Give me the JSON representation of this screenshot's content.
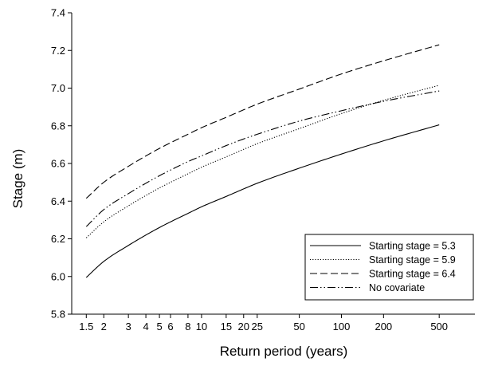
{
  "chart_data": {
    "type": "line",
    "title": "",
    "xlabel": "Return period (years)",
    "ylabel": "Stage (m)",
    "x_scale": "log",
    "xlim": [
      1.18,
      900
    ],
    "ylim": [
      5.8,
      7.4
    ],
    "x_ticks": [
      {
        "value": 1.5,
        "label": "1.5"
      },
      {
        "value": 2,
        "label": "2"
      },
      {
        "value": 3,
        "label": "3"
      },
      {
        "value": 4,
        "label": "4"
      },
      {
        "value": 5,
        "label": "5"
      },
      {
        "value": 6,
        "label": "6"
      },
      {
        "value": 8,
        "label": "8"
      },
      {
        "value": 10,
        "label": "10"
      },
      {
        "value": 15,
        "label": "15"
      },
      {
        "value": 20,
        "label": "20"
      },
      {
        "value": 25,
        "label": "25"
      },
      {
        "value": 50,
        "label": "50"
      },
      {
        "value": 100,
        "label": "100"
      },
      {
        "value": 200,
        "label": "200"
      },
      {
        "value": 500,
        "label": "500"
      }
    ],
    "y_ticks": [
      {
        "value": 5.8,
        "label": "5.8"
      },
      {
        "value": 6.0,
        "label": "6.0"
      },
      {
        "value": 6.2,
        "label": "6.2"
      },
      {
        "value": 6.4,
        "label": "6.4"
      },
      {
        "value": 6.6,
        "label": "6.6"
      },
      {
        "value": 6.8,
        "label": "6.8"
      },
      {
        "value": 7.0,
        "label": "7.0"
      },
      {
        "value": 7.2,
        "label": "7.2"
      },
      {
        "value": 7.4,
        "label": "7.4"
      }
    ],
    "grid": false,
    "legend_position": "bottom-right",
    "x": [
      1.5,
      2,
      3,
      4,
      5,
      6,
      8,
      10,
      15,
      20,
      25,
      50,
      100,
      200,
      500
    ],
    "series": [
      {
        "name": "Starting stage = 5.3",
        "dash": "solid",
        "color": "#000000",
        "values": [
          5.995,
          6.08,
          6.165,
          6.22,
          6.26,
          6.29,
          6.335,
          6.37,
          6.425,
          6.465,
          6.495,
          6.575,
          6.65,
          6.72,
          6.805
        ]
      },
      {
        "name": "Starting stage = 5.9",
        "dash": "dotted",
        "color": "#000000",
        "values": [
          6.205,
          6.29,
          6.375,
          6.43,
          6.47,
          6.5,
          6.545,
          6.58,
          6.635,
          6.675,
          6.705,
          6.785,
          6.865,
          6.935,
          7.015
        ]
      },
      {
        "name": "Starting stage = 6.4",
        "dash": "dashed",
        "color": "#000000",
        "values": [
          6.415,
          6.5,
          6.585,
          6.64,
          6.68,
          6.71,
          6.755,
          6.79,
          6.845,
          6.885,
          6.915,
          6.995,
          7.075,
          7.145,
          7.23
        ]
      },
      {
        "name": "No covariate",
        "dash": "dash-dot-dot",
        "color": "#000000",
        "values": [
          6.265,
          6.355,
          6.44,
          6.495,
          6.535,
          6.565,
          6.61,
          6.64,
          6.695,
          6.73,
          6.755,
          6.825,
          6.88,
          6.93,
          6.985
        ]
      }
    ]
  }
}
